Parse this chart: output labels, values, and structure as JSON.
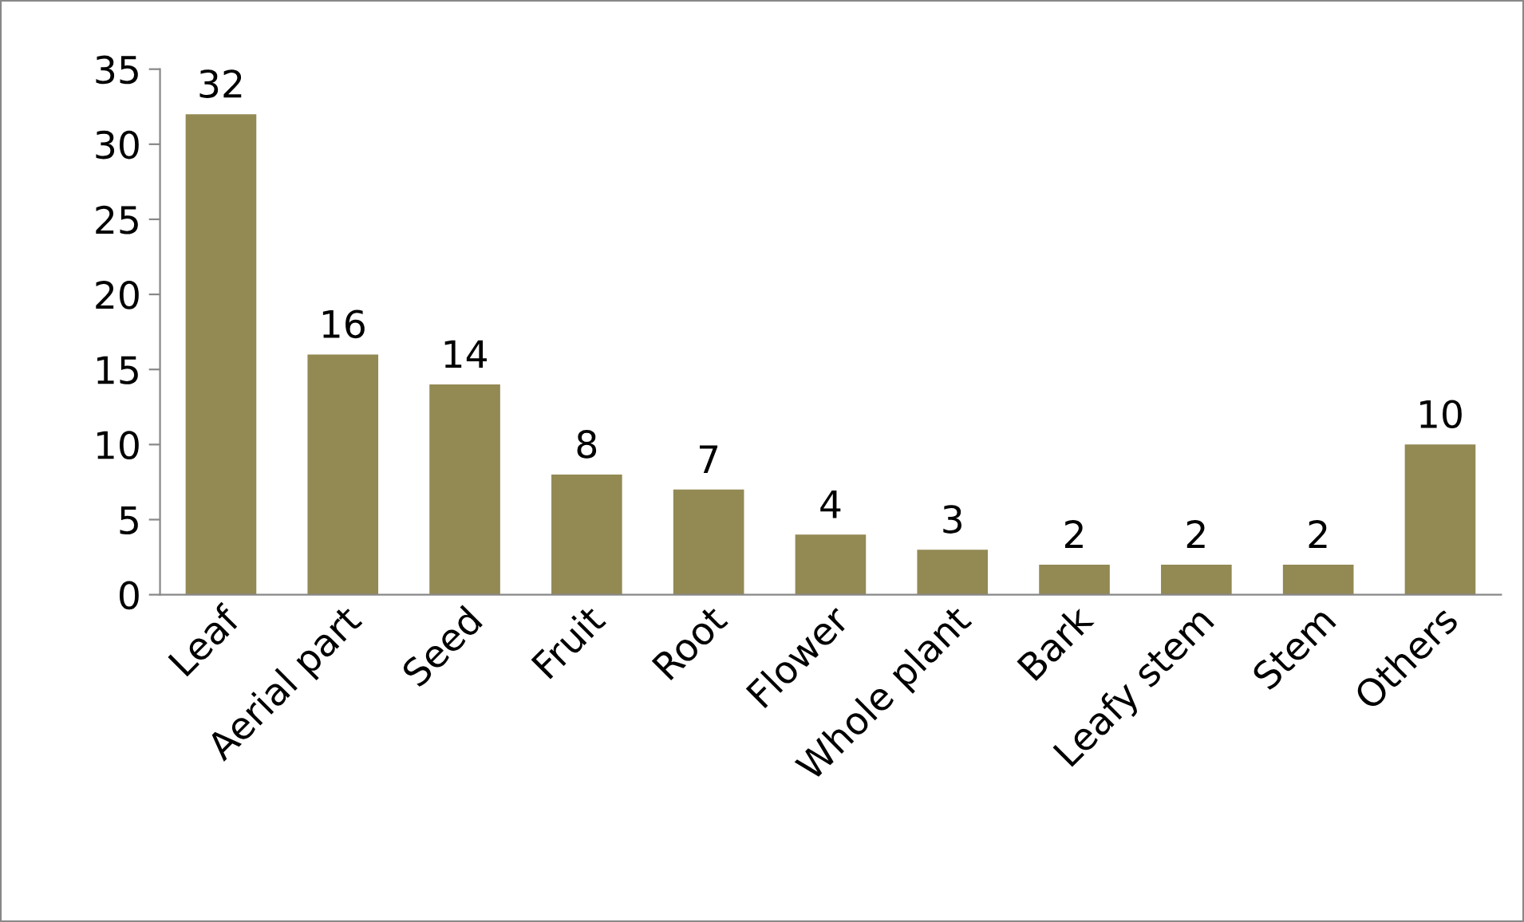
{
  "chart_data": {
    "type": "bar",
    "categories": [
      "Leaf",
      "Aerial part",
      "Seed",
      "Fruit",
      "Root",
      "Flower",
      "Whole plant",
      "Bark",
      "Leafy stem",
      "Stem",
      "Others"
    ],
    "values": [
      32,
      16,
      14,
      8,
      7,
      4,
      3,
      2,
      2,
      2,
      10
    ],
    "color": "#938953",
    "ylim": [
      0,
      35
    ],
    "yticks": [
      0,
      5,
      10,
      15,
      20,
      25,
      30,
      35
    ],
    "grid": false,
    "data_labels": true
  }
}
